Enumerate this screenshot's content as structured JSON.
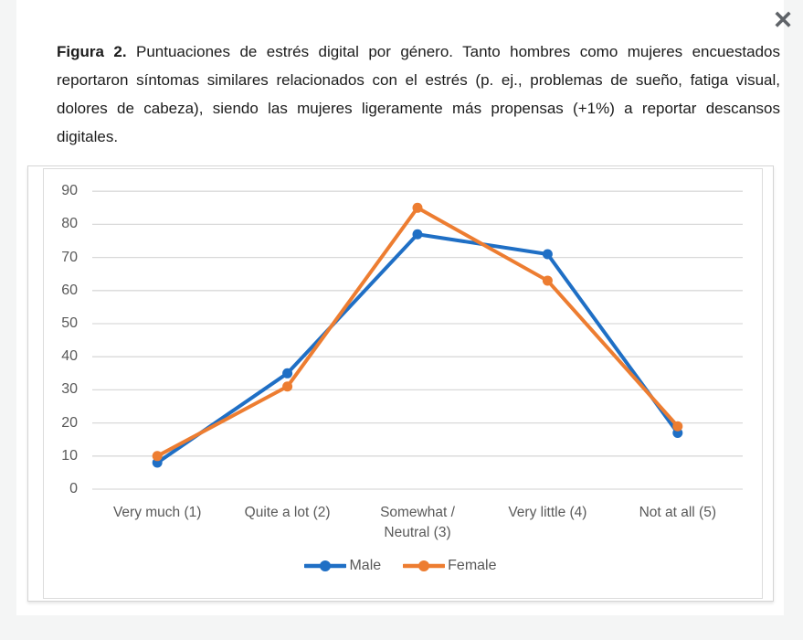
{
  "window": {
    "close_label": "✕"
  },
  "caption": {
    "label": "Figura 2.",
    "text": " Puntuaciones de estrés digital por género. Tanto hombres como mujeres encuestados reportaron síntomas similares relacionados con el estrés (p. ej., problemas de sueño, fatiga visual, dolores de cabeza), siendo las mujeres ligeramente más propensas (+1%) a reportar descansos digitales."
  },
  "chart_data": {
    "type": "line",
    "categories": [
      "Very much (1)",
      "Quite a lot (2)",
      "Somewhat /\nNeutral (3)",
      "Very little (4)",
      "Not at all (5)"
    ],
    "series": [
      {
        "name": "Male",
        "color": "#1f6fc5",
        "values": [
          8,
          35,
          77,
          71,
          17
        ]
      },
      {
        "name": "Female",
        "color": "#ed7d31",
        "values": [
          10,
          31,
          85,
          63,
          19
        ]
      }
    ],
    "title": "",
    "xlabel": "",
    "ylabel": "",
    "ylim": [
      0,
      90
    ],
    "yticks": [
      0,
      10,
      20,
      30,
      40,
      50,
      60,
      70,
      80,
      90
    ],
    "grid": true,
    "gridline_color": "#d9d9d9",
    "axis_text_color": "#595959",
    "legend_position": "bottom",
    "marker": "circle",
    "line_width": 4
  }
}
